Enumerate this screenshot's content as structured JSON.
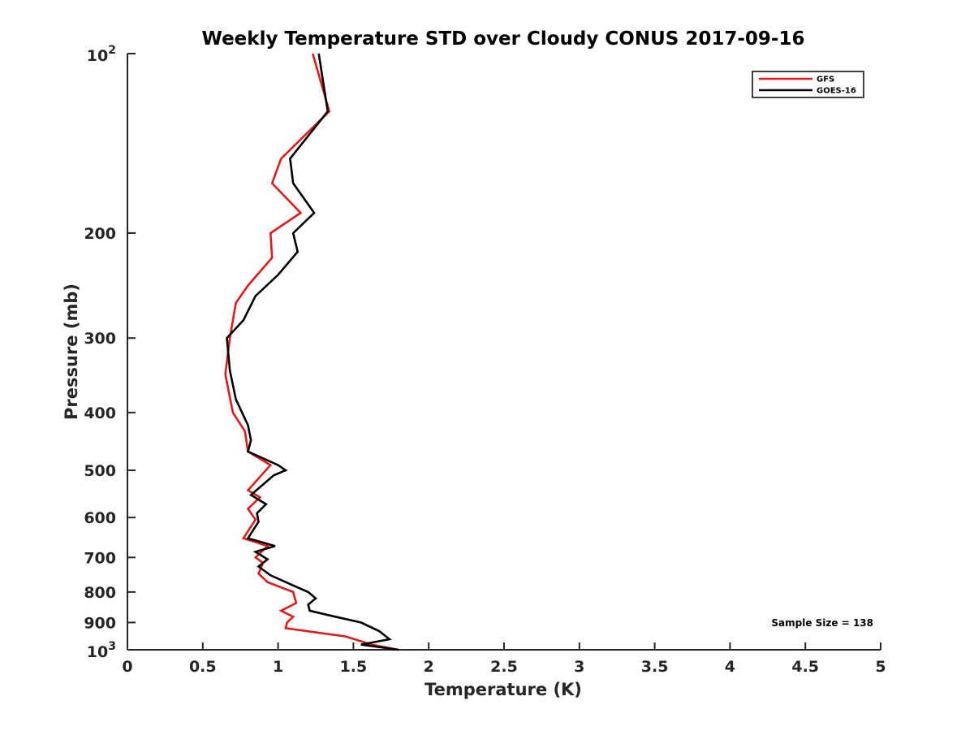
{
  "chart_data": {
    "type": "line",
    "title": "Weekly Temperature STD over Cloudy CONUS 2017-09-16",
    "xlabel": "Temperature (K)",
    "ylabel": "Pressure (mb)",
    "xlim": [
      0,
      5
    ],
    "ylim": [
      100,
      1000
    ],
    "yscale": "log",
    "y_reversed": true,
    "grid": false,
    "legend_position": "top-right",
    "x_ticks": [
      {
        "value": 0,
        "label": "0"
      },
      {
        "value": 0.5,
        "label": "0.5"
      },
      {
        "value": 1,
        "label": "1"
      },
      {
        "value": 1.5,
        "label": "1.5"
      },
      {
        "value": 2,
        "label": "2"
      },
      {
        "value": 2.5,
        "label": "2.5"
      },
      {
        "value": 3,
        "label": "3"
      },
      {
        "value": 3.5,
        "label": "3.5"
      },
      {
        "value": 4,
        "label": "4"
      },
      {
        "value": 4.5,
        "label": "4.5"
      },
      {
        "value": 5,
        "label": "5"
      }
    ],
    "y_ticks": [
      {
        "value": 100,
        "base": "10",
        "exp": "2"
      },
      {
        "value": 200,
        "label": "200"
      },
      {
        "value": 300,
        "label": "300"
      },
      {
        "value": 400,
        "label": "400"
      },
      {
        "value": 500,
        "label": "500"
      },
      {
        "value": 600,
        "label": "600"
      },
      {
        "value": 700,
        "label": "700"
      },
      {
        "value": 800,
        "label": "800"
      },
      {
        "value": 900,
        "label": "900"
      },
      {
        "value": 1000,
        "base": "10",
        "exp": "3"
      }
    ],
    "series": [
      {
        "name": "GFS",
        "color": "#e31a1c",
        "points": [
          [
            1.23,
            100
          ],
          [
            1.34,
            125
          ],
          [
            1.02,
            150
          ],
          [
            0.96,
            165
          ],
          [
            1.15,
            185
          ],
          [
            0.95,
            200
          ],
          [
            0.96,
            220
          ],
          [
            0.8,
            245
          ],
          [
            0.72,
            262
          ],
          [
            0.68,
            300
          ],
          [
            0.65,
            345
          ],
          [
            0.7,
            400
          ],
          [
            0.78,
            430
          ],
          [
            0.8,
            465
          ],
          [
            0.95,
            490
          ],
          [
            0.8,
            540
          ],
          [
            0.88,
            555
          ],
          [
            0.8,
            580
          ],
          [
            0.85,
            605
          ],
          [
            0.77,
            650
          ],
          [
            0.93,
            670
          ],
          [
            0.85,
            700
          ],
          [
            0.9,
            715
          ],
          [
            0.87,
            745
          ],
          [
            0.93,
            770
          ],
          [
            1.1,
            800
          ],
          [
            1.12,
            835
          ],
          [
            1.02,
            860
          ],
          [
            1.1,
            880
          ],
          [
            1.06,
            900
          ],
          [
            1.05,
            920
          ],
          [
            1.45,
            950
          ],
          [
            1.62,
            980
          ],
          [
            1.8,
            1000
          ]
        ]
      },
      {
        "name": "GOES-16",
        "color": "#000000",
        "points": [
          [
            1.27,
            100
          ],
          [
            1.33,
            125
          ],
          [
            1.08,
            150
          ],
          [
            1.1,
            165
          ],
          [
            1.24,
            185
          ],
          [
            1.1,
            200
          ],
          [
            1.13,
            215
          ],
          [
            1.0,
            235
          ],
          [
            0.85,
            255
          ],
          [
            0.77,
            280
          ],
          [
            0.66,
            300
          ],
          [
            0.68,
            340
          ],
          [
            0.72,
            380
          ],
          [
            0.8,
            420
          ],
          [
            0.82,
            445
          ],
          [
            0.8,
            465
          ],
          [
            1.0,
            490
          ],
          [
            1.05,
            500
          ],
          [
            0.97,
            510
          ],
          [
            0.82,
            550
          ],
          [
            0.92,
            570
          ],
          [
            0.86,
            590
          ],
          [
            0.87,
            610
          ],
          [
            0.8,
            650
          ],
          [
            0.98,
            670
          ],
          [
            0.85,
            685
          ],
          [
            0.93,
            705
          ],
          [
            0.87,
            725
          ],
          [
            0.95,
            750
          ],
          [
            1.1,
            780
          ],
          [
            1.2,
            800
          ],
          [
            1.25,
            820
          ],
          [
            1.2,
            840
          ],
          [
            1.21,
            860
          ],
          [
            1.38,
            880
          ],
          [
            1.55,
            900
          ],
          [
            1.67,
            930
          ],
          [
            1.74,
            960
          ],
          [
            1.55,
            980
          ],
          [
            1.8,
            1000
          ]
        ]
      }
    ],
    "annotation": "Sample Size = 138"
  }
}
